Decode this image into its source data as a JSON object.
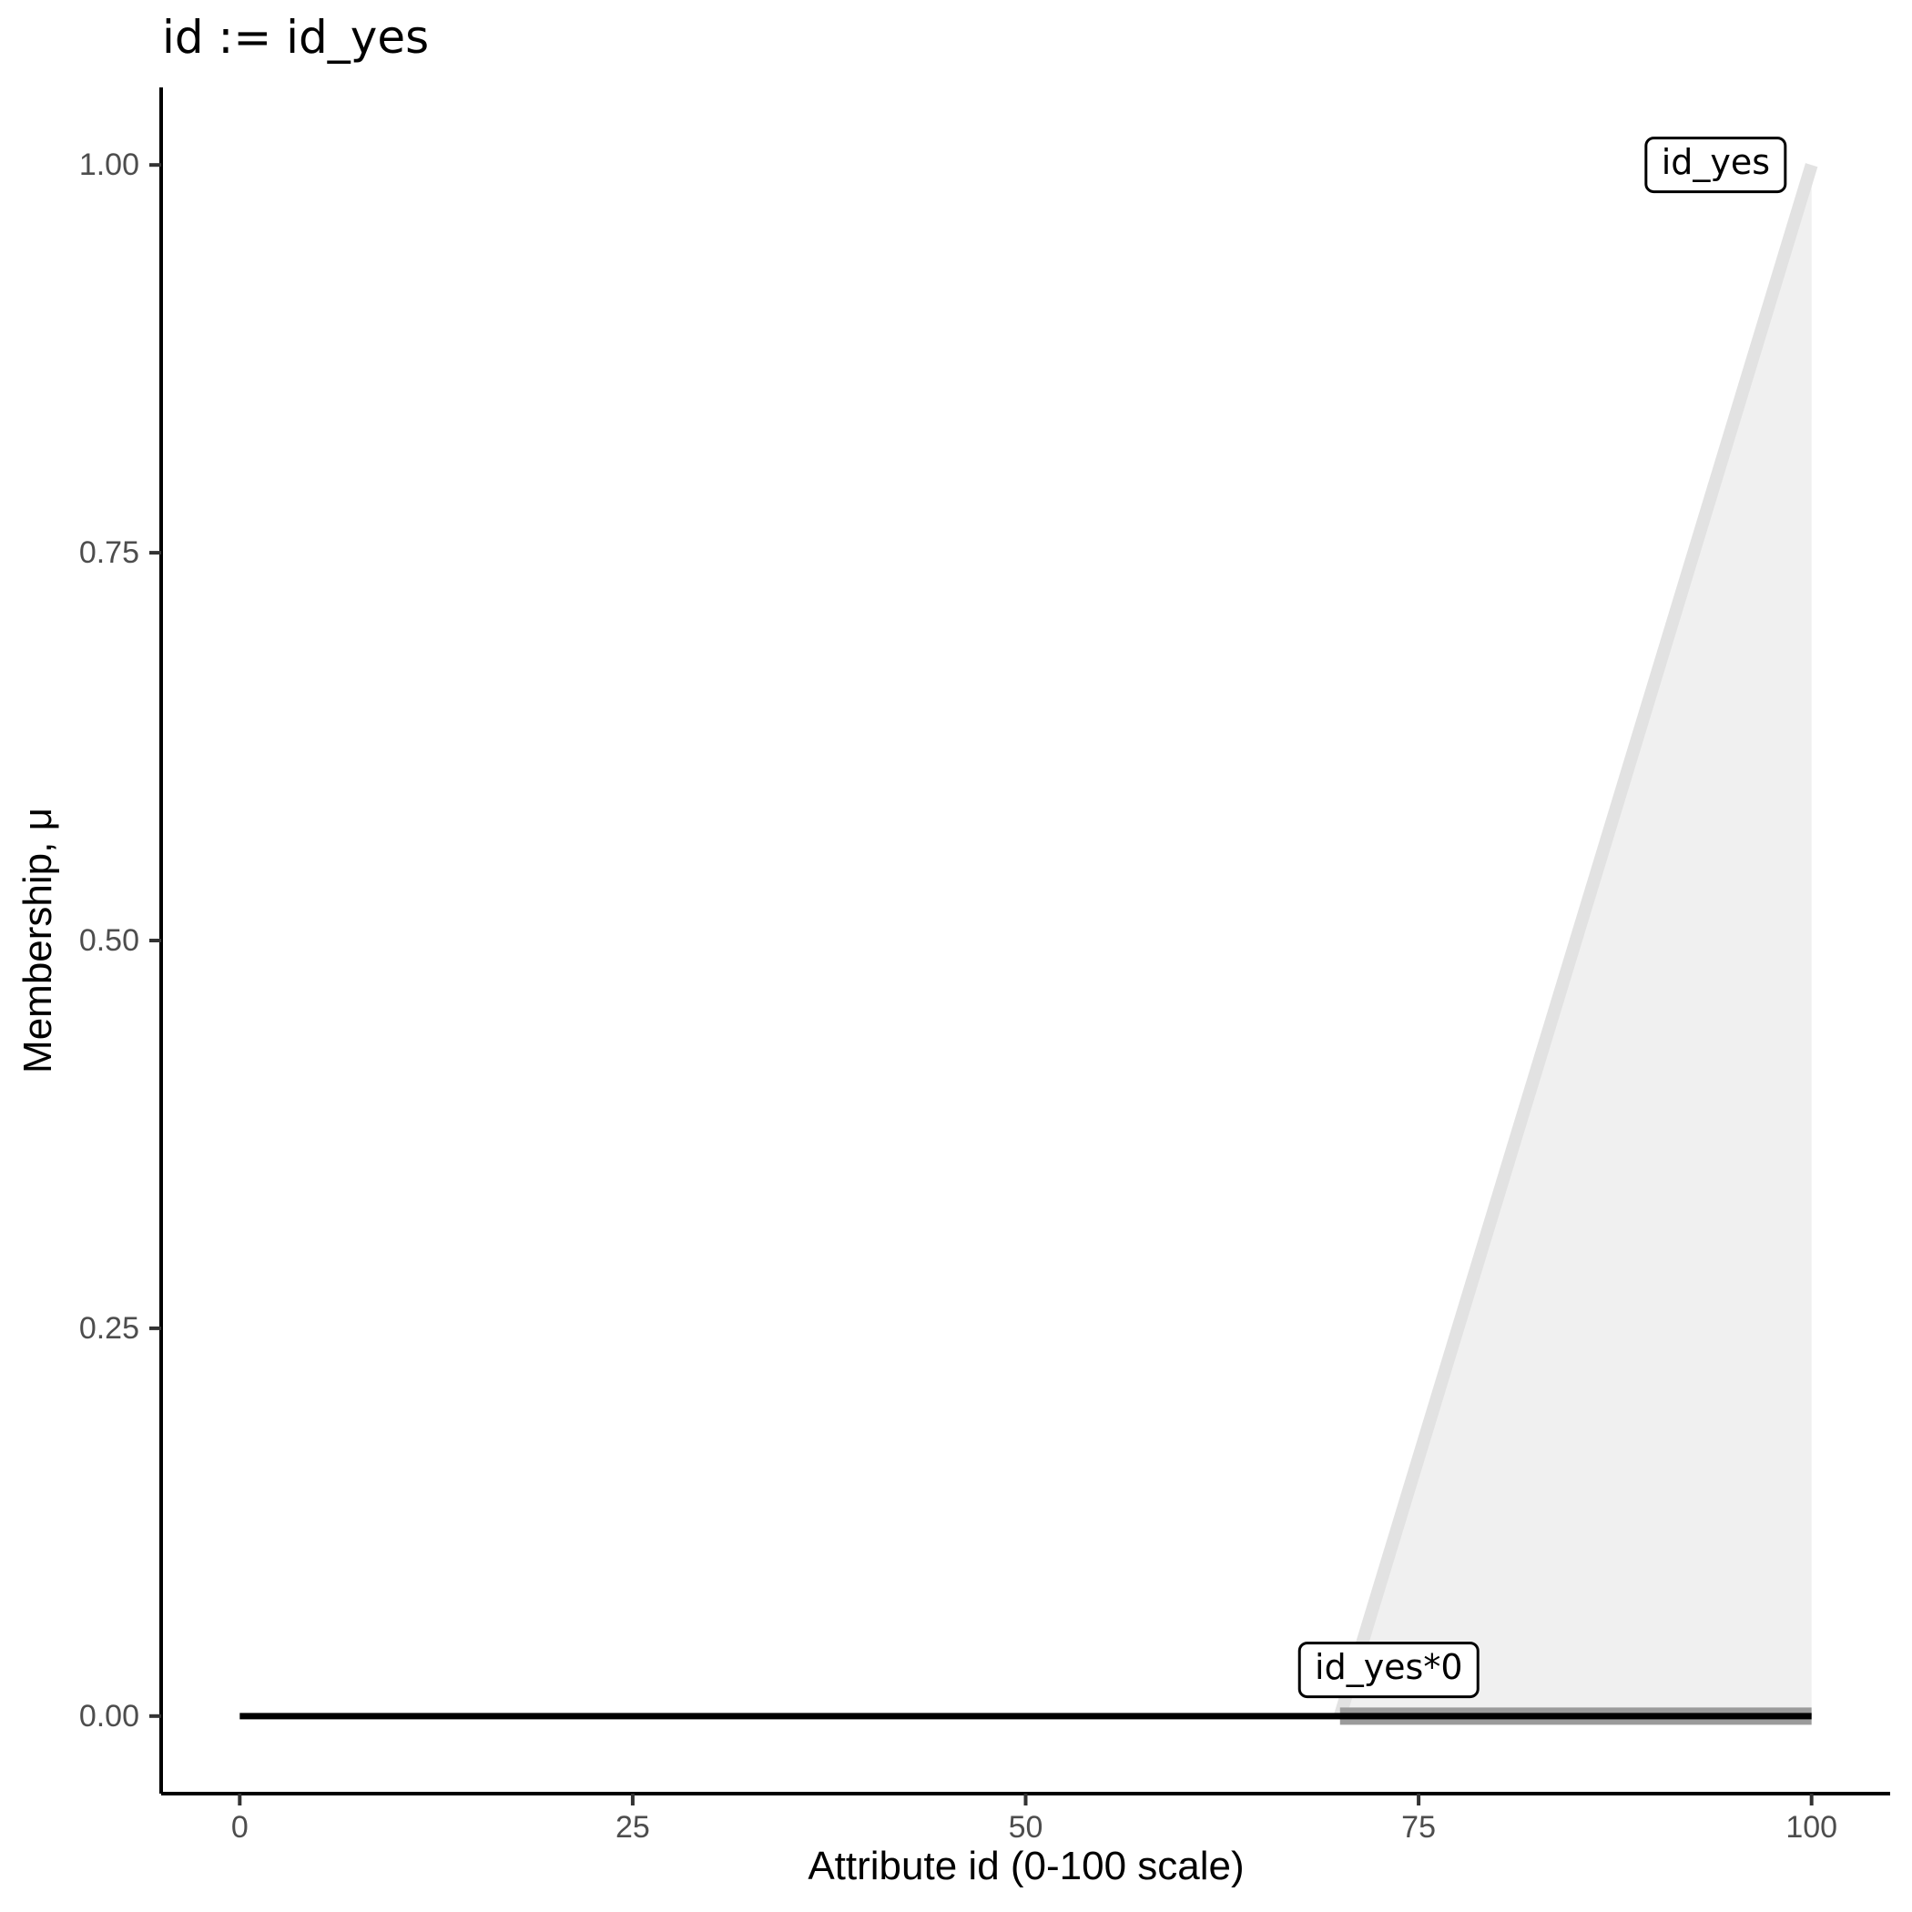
{
  "chart_data": {
    "type": "area",
    "title": "id := id_yes",
    "xlabel": "Attribute id (0-100 scale)",
    "ylabel": "Membership, μ",
    "xlim": [
      0,
      100
    ],
    "ylim": [
      0,
      1
    ],
    "x_ticks": {
      "values": [
        0,
        25,
        50,
        75,
        100
      ],
      "labels": [
        "0",
        "25",
        "50",
        "75",
        "100"
      ]
    },
    "y_ticks": {
      "values": [
        0,
        0.25,
        0.5,
        0.75,
        1
      ],
      "labels": [
        "0.00",
        "0.25",
        "0.50",
        "0.75",
        "1.00"
      ]
    },
    "grid": false,
    "legend_position": "none",
    "series": [
      {
        "name": "id_yes",
        "role": "membership-function",
        "points": [
          [
            70,
            0
          ],
          [
            100,
            1
          ]
        ],
        "line_color": "#e2e2e2",
        "line_width": 14,
        "fill": true,
        "fill_color": "#f0f0f0"
      },
      {
        "name": "id_yes-support",
        "role": "support-highlight",
        "points": [
          [
            70,
            0
          ],
          [
            100,
            0
          ]
        ],
        "line_color": "#9b9b9b",
        "line_width": 19,
        "fill": false
      },
      {
        "name": "id_yes*0",
        "role": "activated-function",
        "points": [
          [
            0,
            0
          ],
          [
            100,
            0
          ]
        ],
        "line_color": "#000000",
        "line_width": 7,
        "fill": false
      }
    ],
    "annotations": [
      {
        "text": "id_yes",
        "x": 93.9,
        "y": 1.0
      },
      {
        "text": "id_yes*0",
        "x": 73.1,
        "y": 0.03
      }
    ],
    "colors": {
      "axis_line": "#000000",
      "tick_mark": "#333333",
      "tick_label": "#4d4d4d",
      "title_text": "#000000"
    }
  }
}
